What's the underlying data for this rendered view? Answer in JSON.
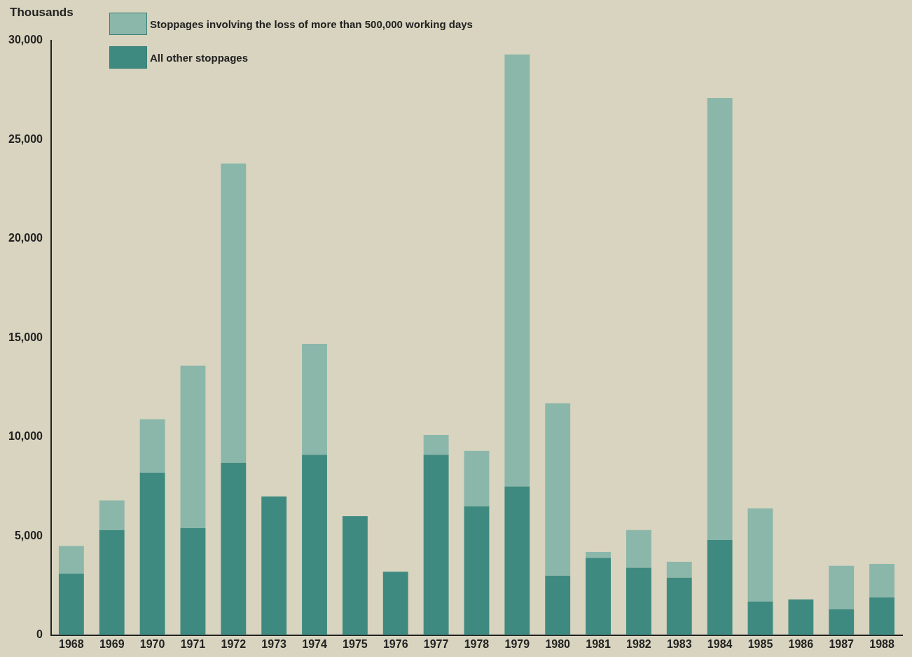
{
  "chart_data": {
    "type": "bar",
    "stacked": true,
    "ylabel": "Thousands",
    "categories": [
      "1968",
      "1969",
      "1970",
      "1971",
      "1972",
      "1973",
      "1974",
      "1975",
      "1976",
      "1977",
      "1978",
      "1979",
      "1980",
      "1981",
      "1982",
      "1983",
      "1984",
      "1985",
      "1986",
      "1987",
      "1988"
    ],
    "series": [
      {
        "name": "All other stoppages",
        "color": "#3f8a80",
        "values": [
          3100,
          5300,
          8200,
          5400,
          8700,
          7000,
          9100,
          6000,
          3200,
          9100,
          6500,
          7500,
          3000,
          3900,
          3400,
          2900,
          4800,
          1700,
          1800,
          1300,
          1900
        ]
      },
      {
        "name": "Stoppages involving the loss of more than 500,000 working days",
        "color": "#8bb7aa",
        "values": [
          1400,
          1500,
          2700,
          8200,
          15100,
          0,
          5600,
          0,
          0,
          1000,
          2800,
          21800,
          8700,
          300,
          1900,
          800,
          22300,
          4700,
          0,
          2200,
          1700
        ]
      }
    ],
    "ylim": [
      0,
      30000
    ],
    "yticks": [
      {
        "value": 0,
        "label": "0"
      },
      {
        "value": 5000,
        "label": "5,000"
      },
      {
        "value": 10000,
        "label": "10,000"
      },
      {
        "value": 15000,
        "label": "15,000"
      },
      {
        "value": 20000,
        "label": "20,000"
      },
      {
        "value": 25000,
        "label": "25,000"
      },
      {
        "value": 30000,
        "label": "30,000"
      }
    ],
    "grid": false,
    "legend": "top left"
  }
}
